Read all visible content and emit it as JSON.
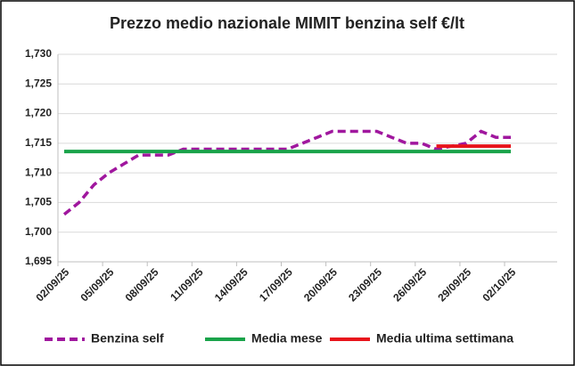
{
  "chart_data": {
    "type": "line",
    "title": "Prezzo medio nazionale MIMIT benzina self €/lt",
    "categories": [
      "02/09/25",
      null,
      null,
      "05/09/25",
      null,
      null,
      "08/09/25",
      null,
      null,
      "11/09/25",
      null,
      null,
      "14/09/25",
      null,
      null,
      "17/09/25",
      null,
      null,
      "20/09/25",
      null,
      null,
      "23/09/25",
      null,
      null,
      "26/09/25",
      null,
      null,
      "29/09/25",
      null,
      null,
      "02/10/25"
    ],
    "series": [
      {
        "name": "Benzina self",
        "color": "#a0179e",
        "dash": true,
        "values": [
          1.703,
          1.705,
          1.708,
          1.71,
          1.7115,
          1.713,
          1.713,
          1.713,
          1.714,
          1.714,
          1.714,
          1.714,
          1.714,
          1.714,
          1.714,
          1.714,
          1.715,
          1.716,
          1.717,
          1.717,
          1.717,
          1.717,
          1.716,
          1.715,
          1.715,
          1.714,
          1.7145,
          1.715,
          1.717,
          1.716,
          1.716
        ]
      },
      {
        "name": "Media mese",
        "color": "#1aa34a",
        "dash": false,
        "values": [
          1.7136,
          1.7136,
          1.7136,
          1.7136,
          1.7136,
          1.7136,
          1.7136,
          1.7136,
          1.7136,
          1.7136,
          1.7136,
          1.7136,
          1.7136,
          1.7136,
          1.7136,
          1.7136,
          1.7136,
          1.7136,
          1.7136,
          1.7136,
          1.7136,
          1.7136,
          1.7136,
          1.7136,
          1.7136,
          1.7136,
          1.7136,
          1.7136,
          1.7136,
          1.7136,
          1.7136
        ]
      },
      {
        "name": "Media ultima settimana",
        "color": "#e8141c",
        "dash": false,
        "values": [
          null,
          null,
          null,
          null,
          null,
          null,
          null,
          null,
          null,
          null,
          null,
          null,
          null,
          null,
          null,
          null,
          null,
          null,
          null,
          null,
          null,
          null,
          null,
          null,
          null,
          1.7145,
          1.7145,
          1.7145,
          1.7145,
          1.7145,
          1.7145
        ]
      }
    ],
    "ylim": [
      1.695,
      1.73
    ],
    "yticks": [
      {
        "value": 1.695,
        "label": "1,695"
      },
      {
        "value": 1.7,
        "label": "1,700"
      },
      {
        "value": 1.705,
        "label": "1,705"
      },
      {
        "value": 1.71,
        "label": "1,710"
      },
      {
        "value": 1.715,
        "label": "1,715"
      },
      {
        "value": 1.72,
        "label": "1,720"
      },
      {
        "value": 1.725,
        "label": "1,725"
      },
      {
        "value": 1.73,
        "label": "1,730"
      }
    ],
    "grid": true,
    "legend": "bottom"
  }
}
